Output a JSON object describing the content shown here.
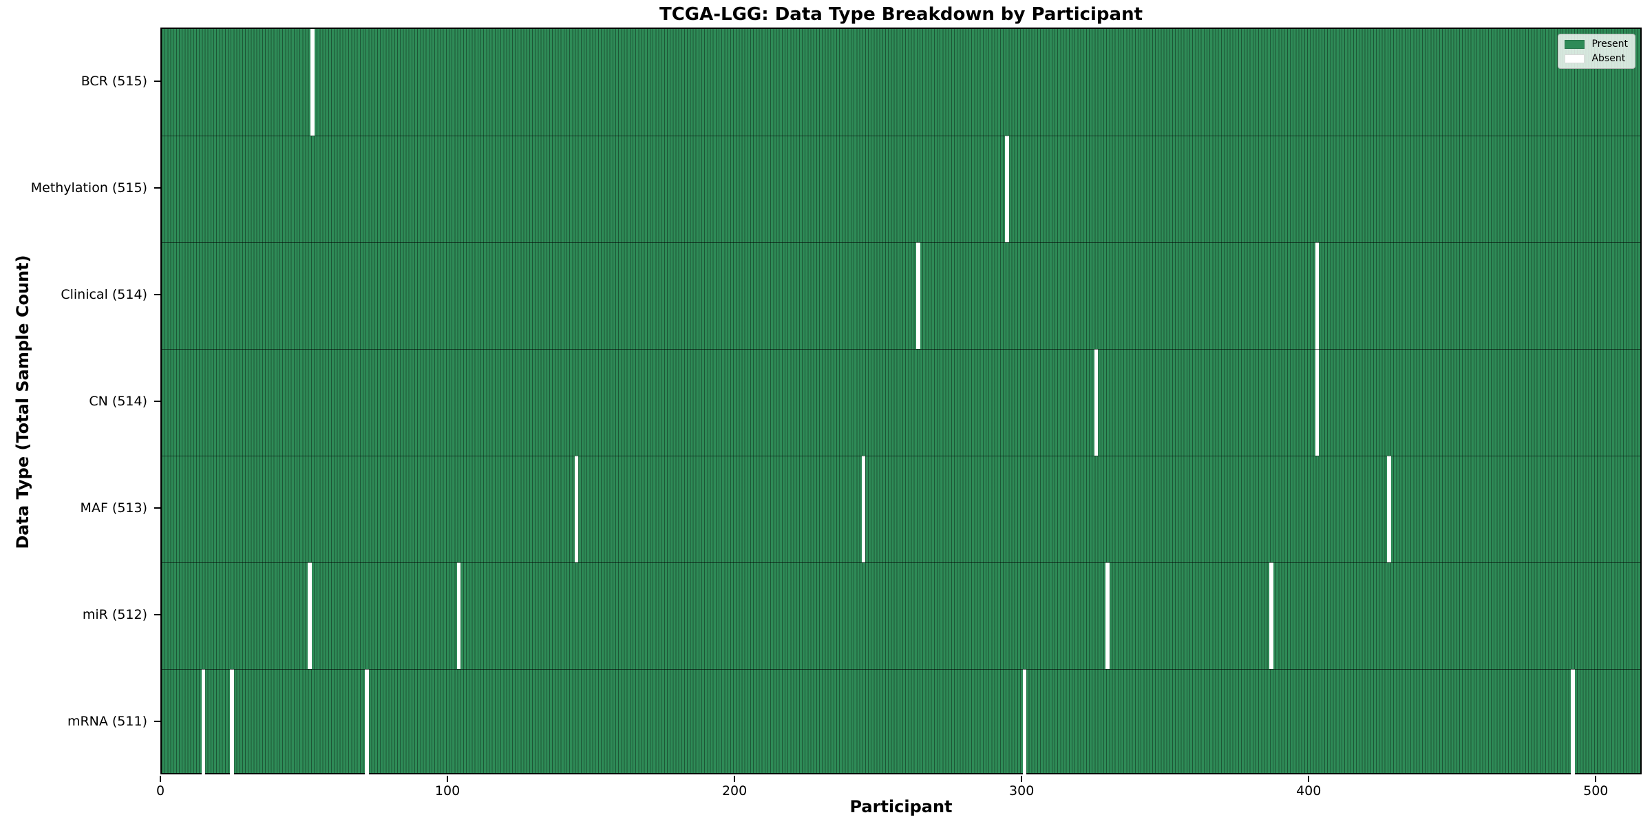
{
  "figure": {
    "title": "TCGA-LGG: Data Type Breakdown by Participant",
    "xlabel": "Participant",
    "ylabel": "Data Type (Total Sample Count)"
  },
  "legend": {
    "entries": [
      {
        "label": "Present",
        "color": "#2e8b57"
      },
      {
        "label": "Absent",
        "color": "#ffffff"
      }
    ]
  },
  "colors": {
    "present": "#2e8b57",
    "absent": "#ffffff",
    "cell_edge": "rgba(0,0,0,0.38)",
    "row_separator": "rgba(0,0,0,0.55)",
    "spine": "#000000"
  },
  "chart_data": {
    "type": "heatmap",
    "title": "TCGA-LGG: Data Type Breakdown by Participant",
    "xlabel": "Participant",
    "ylabel": "Data Type (Total Sample Count)",
    "legend_position": "upper right",
    "grid": false,
    "total_participants": 516,
    "xlim": [
      0,
      516
    ],
    "x_ticks": [
      0,
      100,
      200,
      300,
      400,
      500
    ],
    "value_legend": {
      "1": "Present",
      "0": "Absent"
    },
    "rows": [
      {
        "label": "BCR (515)",
        "data_type": "BCR",
        "present_count": 515,
        "absent_participants": [
          52
        ]
      },
      {
        "label": "Methylation (515)",
        "data_type": "Methylation",
        "present_count": 515,
        "absent_participants": [
          294
        ]
      },
      {
        "label": "Clinical (514)",
        "data_type": "Clinical",
        "present_count": 514,
        "absent_participants": [
          263,
          402
        ]
      },
      {
        "label": "CN (514)",
        "data_type": "CN",
        "present_count": 514,
        "absent_participants": [
          325,
          402
        ]
      },
      {
        "label": "MAF (513)",
        "data_type": "MAF",
        "present_count": 513,
        "absent_participants": [
          144,
          244,
          427
        ]
      },
      {
        "label": "miR (512)",
        "data_type": "miR",
        "present_count": 512,
        "absent_participants": [
          51,
          103,
          329,
          386
        ]
      },
      {
        "label": "mRNA (511)",
        "data_type": "mRNA",
        "present_count": 511,
        "absent_participants": [
          14,
          24,
          71,
          300,
          491
        ]
      }
    ]
  }
}
